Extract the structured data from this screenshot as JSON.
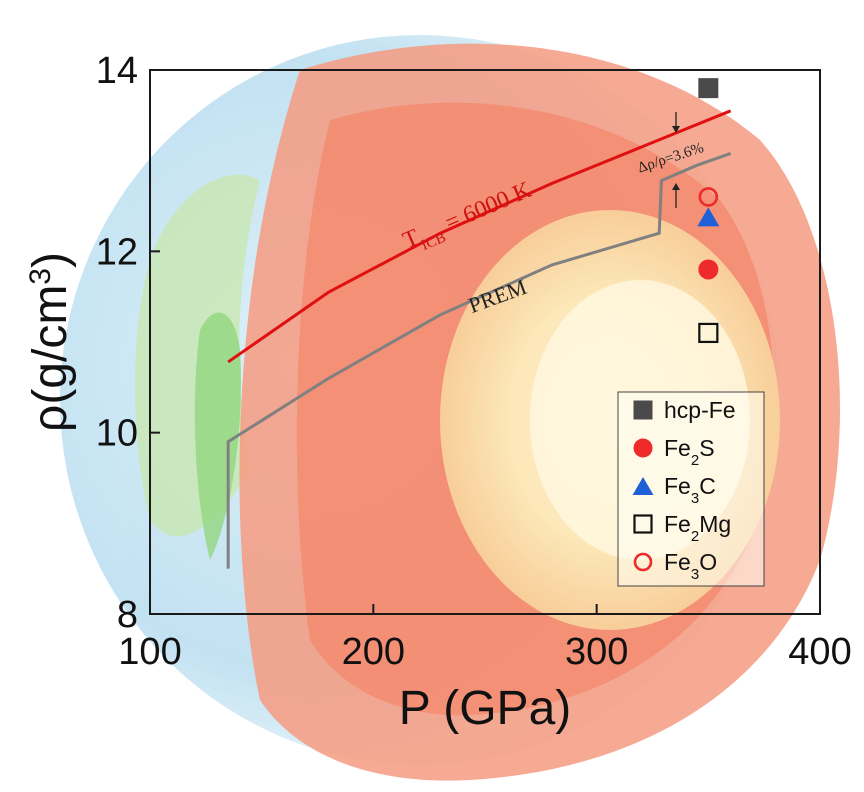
{
  "chart_data": {
    "type": "scatter",
    "xlabel": "P (GPa)",
    "ylabel_main": "ρ(g/cm",
    "ylabel_sup": "3",
    "ylabel_close": ")",
    "xlim": [
      100,
      400
    ],
    "ylim": [
      8,
      14
    ],
    "xticks": [
      100,
      200,
      300,
      400
    ],
    "yticks": [
      8,
      10,
      12,
      14
    ],
    "grid": false,
    "legend_position": "lower-right",
    "curves": [
      {
        "name": "PREM",
        "color": "#808080",
        "points": [
          [
            135,
            8.5
          ],
          [
            135,
            9.9
          ],
          [
            180,
            10.6
          ],
          [
            230,
            11.3
          ],
          [
            280,
            11.85
          ],
          [
            328,
            12.2
          ],
          [
            329,
            12.78
          ],
          [
            345,
            12.95
          ],
          [
            360,
            13.08
          ]
        ]
      },
      {
        "name_main": "T",
        "name_sub": "ICB",
        "name_rest": " = 6000 K",
        "color": "#e01010",
        "points": [
          [
            135,
            10.78
          ],
          [
            180,
            11.55
          ],
          [
            230,
            12.2
          ],
          [
            280,
            12.75
          ],
          [
            330,
            13.25
          ],
          [
            360,
            13.55
          ]
        ]
      }
    ],
    "annotation": {
      "text": "Δρ/ρ=3.6%",
      "x": 340,
      "y": 13.02
    },
    "series": [
      {
        "name_main": "hcp-Fe",
        "name_sub": "",
        "name_rest": "",
        "marker": "square-filled",
        "color": "#4a4a4a",
        "x": 350,
        "y": 13.8
      },
      {
        "name_main": "Fe",
        "name_sub": "2",
        "name_rest": "S",
        "marker": "circle-filled",
        "color": "#ee2a2a",
        "x": 350,
        "y": 11.8
      },
      {
        "name_main": "Fe",
        "name_sub": "3",
        "name_rest": "C",
        "marker": "triangle-filled",
        "color": "#1f5fd8",
        "x": 350,
        "y": 12.38
      },
      {
        "name_main": "Fe",
        "name_sub": "2",
        "name_rest": "Mg",
        "marker": "square-open",
        "color": "#111111",
        "x": 350,
        "y": 11.1
      },
      {
        "name_main": "Fe",
        "name_sub": "3",
        "name_rest": "O",
        "marker": "circle-open",
        "color": "#ee2a2a",
        "x": 350,
        "y": 12.6
      }
    ]
  }
}
